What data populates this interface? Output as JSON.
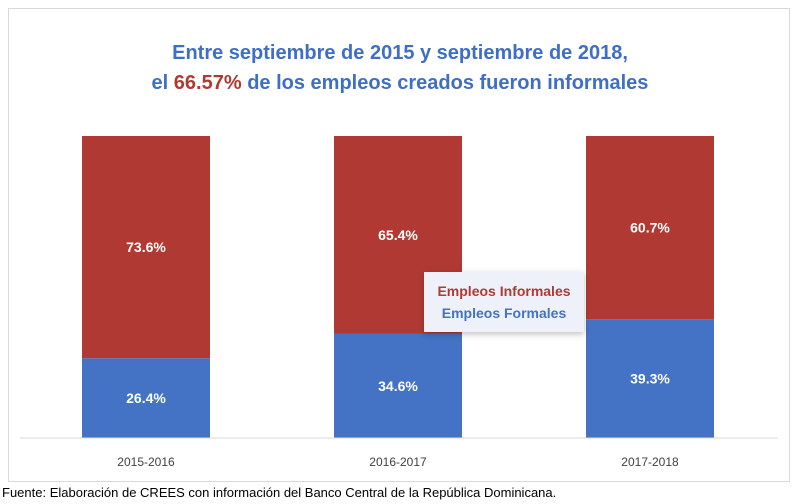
{
  "title": {
    "line1": "Entre septiembre de 2015 y septiembre de 2018,",
    "line2_prefix": "el ",
    "line2_highlight": "66.57%",
    "line2_suffix": " de los empleos creados fueron informales"
  },
  "chart_data": {
    "type": "bar",
    "stacked": true,
    "percent_stacked": true,
    "title": "Entre septiembre de 2015 y septiembre de 2018, el 66.57% de los empleos creados fueron informales",
    "categories": [
      "2015-2016",
      "2016-2017",
      "2017-2018"
    ],
    "series": [
      {
        "name": "Empleos Formales",
        "color": "#4472c4",
        "values": [
          26.4,
          34.6,
          39.3
        ],
        "labels": [
          "26.4%",
          "34.6%",
          "39.3%"
        ]
      },
      {
        "name": "Empleos Informales",
        "color": "#b03a33",
        "values": [
          73.6,
          65.4,
          60.7
        ],
        "labels": [
          "73.6%",
          "65.4%",
          "60.7%"
        ]
      }
    ],
    "ylim": [
      0,
      100
    ],
    "xlabel": "",
    "ylabel": "",
    "grid": false,
    "legend_position": "center"
  },
  "legend": {
    "informal": "Empleos Informales",
    "formal": "Empleos Formales"
  },
  "colors": {
    "title": "#3f6fc5",
    "highlight": "#b03a33",
    "formal": "#4472c4",
    "informal": "#b03a33"
  },
  "footer": "Fuente: Elaboración de CREES con información del Banco Central de la República Dominicana."
}
